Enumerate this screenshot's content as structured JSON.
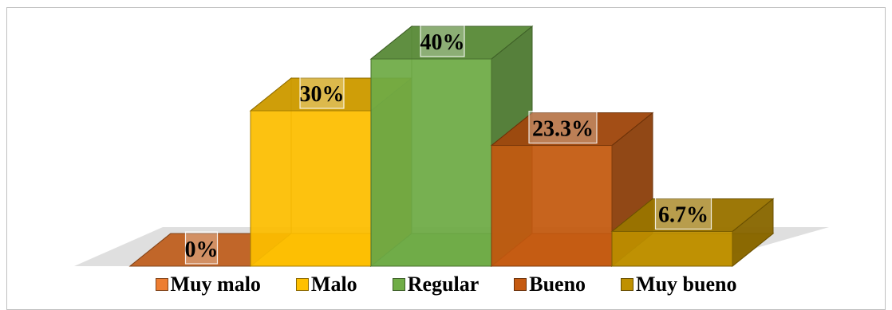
{
  "chart_data": {
    "type": "bar",
    "style": "3d",
    "categories": [
      "Muy malo",
      "Malo",
      "Regular",
      "Bueno",
      "Muy bueno"
    ],
    "values": [
      0,
      30,
      40,
      23.3,
      6.7
    ],
    "data_labels": [
      "0%",
      "30%",
      "40%",
      "23.3%",
      "6.7%"
    ],
    "ylim": [
      0,
      40
    ],
    "grid": false,
    "legend_position": "bottom",
    "colors": [
      "#ed7d31",
      "#ffc000",
      "#70ad47",
      "#c55a11",
      "#bf9000"
    ]
  }
}
